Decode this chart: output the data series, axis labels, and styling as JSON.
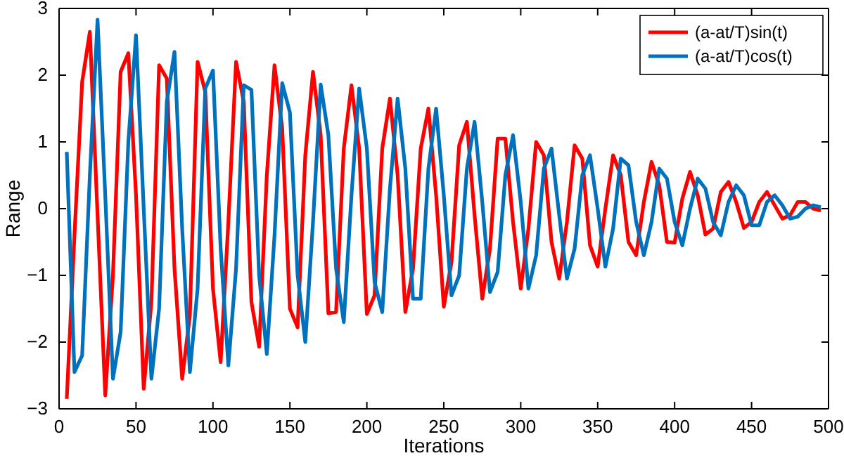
{
  "chart_data": {
    "type": "line",
    "xlabel": "Iterations",
    "ylabel": "Range",
    "x": [
      5,
      10,
      15,
      20,
      25,
      30,
      35,
      40,
      45,
      50,
      55,
      60,
      65,
      70,
      75,
      80,
      85,
      90,
      95,
      100,
      105,
      110,
      115,
      120,
      125,
      130,
      135,
      140,
      145,
      150,
      155,
      160,
      165,
      170,
      175,
      180,
      185,
      190,
      195,
      200,
      205,
      210,
      215,
      220,
      225,
      230,
      235,
      240,
      245,
      250,
      255,
      260,
      265,
      270,
      275,
      280,
      285,
      290,
      295,
      300,
      305,
      310,
      315,
      320,
      325,
      330,
      335,
      340,
      345,
      350,
      355,
      360,
      365,
      370,
      375,
      380,
      385,
      390,
      395,
      400,
      405,
      410,
      415,
      420,
      425,
      430,
      435,
      440,
      445,
      450,
      455,
      460,
      465,
      470,
      475,
      480,
      485,
      490,
      495
    ],
    "series": [
      {
        "name": "(a-at/T)sin(t)",
        "color": "#ff0000",
        "values": [
          -2.85,
          -0.4,
          1.9,
          2.65,
          -0.1,
          -2.8,
          -1.0,
          2.05,
          2.33,
          0.2,
          -2.7,
          -1.4,
          2.15,
          1.95,
          -0.9,
          -2.55,
          -1.6,
          2.2,
          1.75,
          -1.2,
          -2.3,
          -0.2,
          2.2,
          1.6,
          -1.4,
          -2.07,
          0.5,
          2.15,
          1.2,
          -1.5,
          -1.78,
          0.8,
          2.05,
          1.1,
          -1.57,
          -1.55,
          0.9,
          1.85,
          0.9,
          -1.58,
          -1.3,
          0.9,
          1.65,
          0.5,
          -1.55,
          -0.9,
          0.9,
          1.5,
          0.2,
          -1.47,
          -0.8,
          0.95,
          1.3,
          -0.1,
          -1.35,
          -0.6,
          1.05,
          1.05,
          -0.2,
          -1.2,
          -0.3,
          1.0,
          0.8,
          -0.5,
          -1.05,
          -0.2,
          0.95,
          0.75,
          -0.55,
          -0.87,
          0.0,
          0.8,
          0.5,
          -0.5,
          -0.7,
          0.1,
          0.7,
          0.35,
          -0.5,
          -0.51,
          0.15,
          0.55,
          0.2,
          -0.39,
          -0.3,
          0.25,
          0.4,
          0.1,
          -0.29,
          -0.2,
          0.1,
          0.25,
          0.05,
          -0.15,
          -0.1,
          0.1,
          0.1,
          0.0,
          -0.03
        ]
      },
      {
        "name": "(a-at/T)cos(t)",
        "color": "#0072bd",
        "values": [
          0.85,
          -2.45,
          -2.2,
          0.5,
          2.83,
          0.2,
          -2.55,
          -1.85,
          1.0,
          2.6,
          0.0,
          -2.55,
          -1.5,
          1.6,
          2.35,
          -0.3,
          -2.45,
          -1.2,
          1.8,
          2.07,
          -0.6,
          -2.35,
          -0.9,
          1.85,
          1.78,
          -1.0,
          -2.18,
          -0.4,
          1.88,
          1.44,
          -1.0,
          -2.0,
          -0.2,
          1.86,
          1.1,
          -0.9,
          -1.7,
          0.2,
          1.8,
          0.9,
          -1.1,
          -1.55,
          0.3,
          1.65,
          0.6,
          -1.35,
          -1.35,
          0.6,
          1.5,
          0.2,
          -1.3,
          -1.0,
          0.6,
          1.3,
          0.1,
          -1.25,
          -0.95,
          0.5,
          1.1,
          0.1,
          -1.2,
          -0.7,
          0.6,
          0.9,
          -0.1,
          -1.05,
          -0.6,
          0.5,
          0.8,
          0.0,
          -0.87,
          -0.3,
          0.75,
          0.65,
          -0.2,
          -0.7,
          -0.2,
          0.6,
          0.45,
          -0.2,
          -0.55,
          0.0,
          0.45,
          0.3,
          -0.2,
          -0.4,
          0.1,
          0.35,
          0.2,
          -0.25,
          -0.25,
          0.1,
          0.2,
          0.05,
          -0.15,
          -0.12,
          0.0,
          0.05,
          0.02
        ]
      }
    ],
    "xlim": [
      0,
      500
    ],
    "xticks": [
      0,
      50,
      100,
      150,
      200,
      250,
      300,
      350,
      400,
      450,
      500
    ],
    "ylim": [
      -3,
      3
    ],
    "yticks": [
      -3,
      -2,
      -1,
      0,
      1,
      2,
      3
    ],
    "legend": "top right",
    "line_style": "solid"
  }
}
